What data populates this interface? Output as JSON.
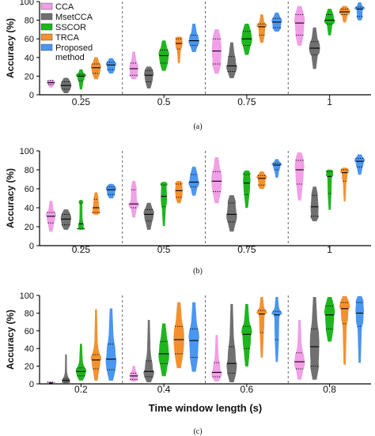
{
  "legend": [
    {
      "label": "CCA",
      "color": "#f19fe6"
    },
    {
      "label": "MsetCCA",
      "color": "#707070"
    },
    {
      "label": "SSCOR",
      "color": "#1fb51f"
    },
    {
      "label": "TRCA",
      "color": "#f4912f"
    },
    {
      "label": "Proposed method",
      "color": "#4a96f0"
    }
  ],
  "chart_data": [
    {
      "type": "violin",
      "panel_label": "(a)",
      "ylabel": "Accuracy (%)",
      "xlabel": "",
      "ylim": [
        0,
        100
      ],
      "yticks": [
        0,
        20,
        40,
        60,
        80,
        100
      ],
      "categories": [
        "0.25",
        "0.5",
        "0.75",
        "1"
      ],
      "series": [
        {
          "name": "CCA",
          "color": "#f19fe6",
          "min": [
            8,
            17,
            23,
            53
          ],
          "q1": [
            11,
            21,
            33,
            64
          ],
          "median": [
            13,
            28,
            47,
            77
          ],
          "q3": [
            15,
            34,
            60,
            86
          ],
          "max": [
            16,
            46,
            70,
            95
          ]
        },
        {
          "name": "MsetCCA",
          "color": "#707070",
          "min": [
            2,
            7,
            18,
            28
          ],
          "q1": [
            6,
            14,
            25,
            43
          ],
          "median": [
            10,
            21,
            31,
            50
          ],
          "q3": [
            14,
            26,
            41,
            57
          ],
          "max": [
            18,
            30,
            56,
            72
          ]
        },
        {
          "name": "SSCOR",
          "color": "#1fb51f",
          "min": [
            6,
            26,
            43,
            64
          ],
          "q1": [
            15,
            34,
            53,
            76
          ],
          "median": [
            20,
            42,
            60,
            80
          ],
          "q3": [
            22,
            48,
            68,
            86
          ],
          "max": [
            27,
            58,
            76,
            92
          ]
        },
        {
          "name": "TRCA",
          "color": "#f4912f",
          "min": [
            17,
            34,
            56,
            78
          ],
          "q1": [
            23,
            49,
            64,
            86
          ],
          "median": [
            29,
            55,
            73,
            89
          ],
          "q3": [
            33,
            60,
            76,
            92
          ],
          "max": [
            40,
            62,
            86,
            95
          ]
        },
        {
          "name": "Proposed method",
          "color": "#4a96f0",
          "min": [
            23,
            46,
            68,
            80
          ],
          "q1": [
            27,
            53,
            72,
            84
          ],
          "median": [
            32,
            58,
            78,
            92
          ],
          "q3": [
            35,
            64,
            82,
            94
          ],
          "max": [
            39,
            76,
            88,
            99
          ]
        }
      ]
    },
    {
      "type": "violin",
      "panel_label": "(b)",
      "ylabel": "Accuracy (%)",
      "xlabel": "",
      "ylim": [
        0,
        100
      ],
      "yticks": [
        0,
        20,
        40,
        60,
        80,
        100
      ],
      "categories": [
        "0.25",
        "0.5",
        "0.75",
        "1"
      ],
      "series": [
        {
          "name": "CCA",
          "color": "#f19fe6",
          "min": [
            15,
            30,
            45,
            48
          ],
          "q1": [
            24,
            40,
            57,
            65
          ],
          "median": [
            31,
            44,
            68,
            80
          ],
          "q3": [
            35,
            59,
            78,
            90
          ],
          "max": [
            47,
            68,
            93,
            98
          ]
        },
        {
          "name": "MsetCCA",
          "color": "#707070",
          "min": [
            17,
            17,
            15,
            26
          ],
          "q1": [
            22,
            26,
            25,
            31
          ],
          "median": [
            28,
            33,
            33,
            41
          ],
          "q3": [
            33,
            38,
            45,
            53
          ],
          "max": [
            38,
            45,
            53,
            62
          ]
        },
        {
          "name": "SSCOR",
          "color": "#1fb51f",
          "min": [
            17,
            21,
            40,
            38
          ],
          "q1": [
            18,
            41,
            54,
            55
          ],
          "median": [
            23,
            52,
            66,
            73
          ],
          "q3": [
            45,
            64,
            75,
            78
          ],
          "max": [
            48,
            67,
            79,
            80
          ]
        },
        {
          "name": "TRCA",
          "color": "#f4912f",
          "min": [
            33,
            45,
            60,
            47
          ],
          "q1": [
            35,
            51,
            64,
            68
          ],
          "median": [
            40,
            58,
            71,
            77
          ],
          "q3": [
            49,
            65,
            74,
            80
          ],
          "max": [
            56,
            68,
            78,
            82
          ]
        },
        {
          "name": "Proposed method",
          "color": "#4a96f0",
          "min": [
            50,
            53,
            72,
            75
          ],
          "q1": [
            54,
            62,
            80,
            83
          ],
          "median": [
            59,
            67,
            85,
            89
          ],
          "q3": [
            62,
            75,
            87,
            92
          ],
          "max": [
            65,
            83,
            91,
            96
          ]
        }
      ]
    },
    {
      "type": "violin",
      "panel_label": "(c)",
      "ylabel": "Accuracy (%)",
      "xlabel": "Time window length (s)",
      "ylim": [
        0,
        100
      ],
      "yticks": [
        0,
        20,
        40,
        60,
        80,
        100
      ],
      "categories": [
        "0.2",
        "0.4",
        "0.6",
        "0.8"
      ],
      "series": [
        {
          "name": "CCA",
          "color": "#f19fe6",
          "min": [
            1,
            3,
            3,
            5
          ],
          "q1": [
            1,
            5,
            8,
            17
          ],
          "median": [
            1,
            9,
            13,
            25
          ],
          "q3": [
            2,
            12,
            24,
            35
          ],
          "max": [
            2,
            20,
            55,
            72
          ]
        },
        {
          "name": "MsetCCA",
          "color": "#707070",
          "min": [
            1,
            2,
            2,
            5
          ],
          "q1": [
            2,
            8,
            12,
            20
          ],
          "median": [
            4,
            14,
            23,
            42
          ],
          "q3": [
            6,
            26,
            42,
            62
          ],
          "max": [
            33,
            72,
            90,
            98
          ]
        },
        {
          "name": "SSCOR",
          "color": "#1fb51f",
          "min": [
            4,
            9,
            20,
            48
          ],
          "q1": [
            9,
            23,
            40,
            62
          ],
          "median": [
            14,
            34,
            56,
            78
          ],
          "q3": [
            18,
            48,
            65,
            88
          ],
          "max": [
            45,
            68,
            90,
            98
          ]
        },
        {
          "name": "TRCA",
          "color": "#f4912f",
          "min": [
            4,
            18,
            30,
            22
          ],
          "q1": [
            17,
            34,
            58,
            68
          ],
          "median": [
            27,
            50,
            79,
            85
          ],
          "q3": [
            33,
            65,
            83,
            92
          ],
          "max": [
            84,
            92,
            98,
            99
          ]
        },
        {
          "name": "Proposed method",
          "color": "#4a96f0",
          "min": [
            4,
            14,
            25,
            24
          ],
          "q1": [
            16,
            30,
            50,
            65
          ],
          "median": [
            28,
            49,
            78,
            80
          ],
          "q3": [
            45,
            62,
            82,
            92
          ],
          "max": [
            85,
            92,
            98,
            99
          ]
        }
      ]
    }
  ]
}
